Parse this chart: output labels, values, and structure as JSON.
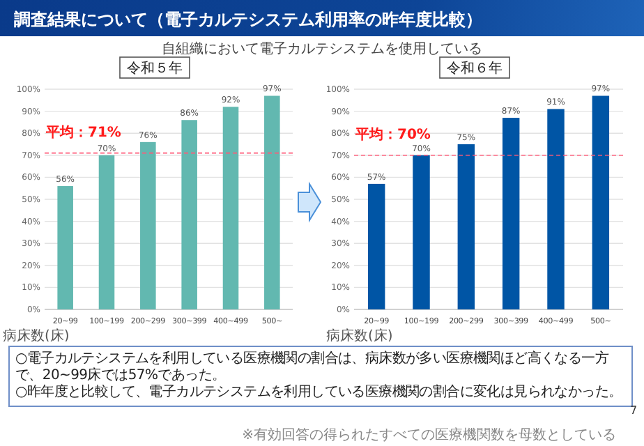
{
  "chart_data": [
    {
      "type": "bar",
      "title": "令和５年",
      "xlabel": "病床数(床)",
      "categories": [
        "20~99",
        "100~199",
        "200~299",
        "300~399",
        "400~499",
        "500~"
      ],
      "values": [
        56,
        70,
        76,
        86,
        92,
        97
      ],
      "value_labels": [
        "56%",
        "70%",
        "76%",
        "86%",
        "92%",
        "97%"
      ],
      "color": "#62b8b0",
      "ylim": [
        0,
        100
      ],
      "yticks": [
        {
          "value": 0,
          "label": "0%"
        },
        {
          "value": 10,
          "label": "10%"
        },
        {
          "value": 20,
          "label": "20%"
        },
        {
          "value": 30,
          "label": "30%"
        },
        {
          "value": 40,
          "label": "40%"
        },
        {
          "value": 50,
          "label": "50%"
        },
        {
          "value": 60,
          "label": "60%"
        },
        {
          "value": 70,
          "label": "70%"
        },
        {
          "value": 80,
          "label": "80%"
        },
        {
          "value": 90,
          "label": "90%"
        },
        {
          "value": 100,
          "label": "100%"
        }
      ],
      "grid": "y",
      "ref_lines": [
        {
          "axis": "y",
          "value": 71,
          "label": "平均：71%",
          "color": "#ff5a78",
          "line_style": "dashed"
        }
      ],
      "annotations": [
        "調査結果について（電子カルテシステム利用率の昨年度比較）",
        "自組織において電子カルテシステムを使用している"
      ]
    },
    {
      "type": "bar",
      "title": "令和６年",
      "xlabel": "病床数(床)",
      "categories": [
        "20~99",
        "100~199",
        "200~299",
        "300~399",
        "400~499",
        "500~"
      ],
      "values": [
        57,
        70,
        75,
        87,
        91,
        97
      ],
      "value_labels": [
        "57%",
        "70%",
        "75%",
        "87%",
        "91%",
        "97%"
      ],
      "color": "#0055a5",
      "ylim": [
        0,
        100
      ],
      "yticks": [
        {
          "value": 0,
          "label": "0%"
        },
        {
          "value": 10,
          "label": "10%"
        },
        {
          "value": 20,
          "label": "20%"
        },
        {
          "value": 30,
          "label": "30%"
        },
        {
          "value": 40,
          "label": "40%"
        },
        {
          "value": 50,
          "label": "50%"
        },
        {
          "value": 60,
          "label": "60%"
        },
        {
          "value": 70,
          "label": "70%"
        },
        {
          "value": 80,
          "label": "80%"
        },
        {
          "value": 90,
          "label": "90%"
        },
        {
          "value": 100,
          "label": "100%"
        }
      ],
      "grid": "y",
      "ref_lines": [
        {
          "axis": "y",
          "value": 70,
          "label": "平均：70%",
          "color": "#ff5a78",
          "line_style": "dashed"
        }
      ],
      "annotations": [
        "○電子カルテシステムを利用している医療機関の割合は、病床数が多い医療機関ほど高くなる一方で、20~99床では57%であった。",
        "○昨年度と比較して、電子カルテシステムを利用している医療機関の割合に変化は見られなかった。",
        "※有効回答の得られたすべての医療機関数を母数としている",
        "7"
      ]
    }
  ]
}
